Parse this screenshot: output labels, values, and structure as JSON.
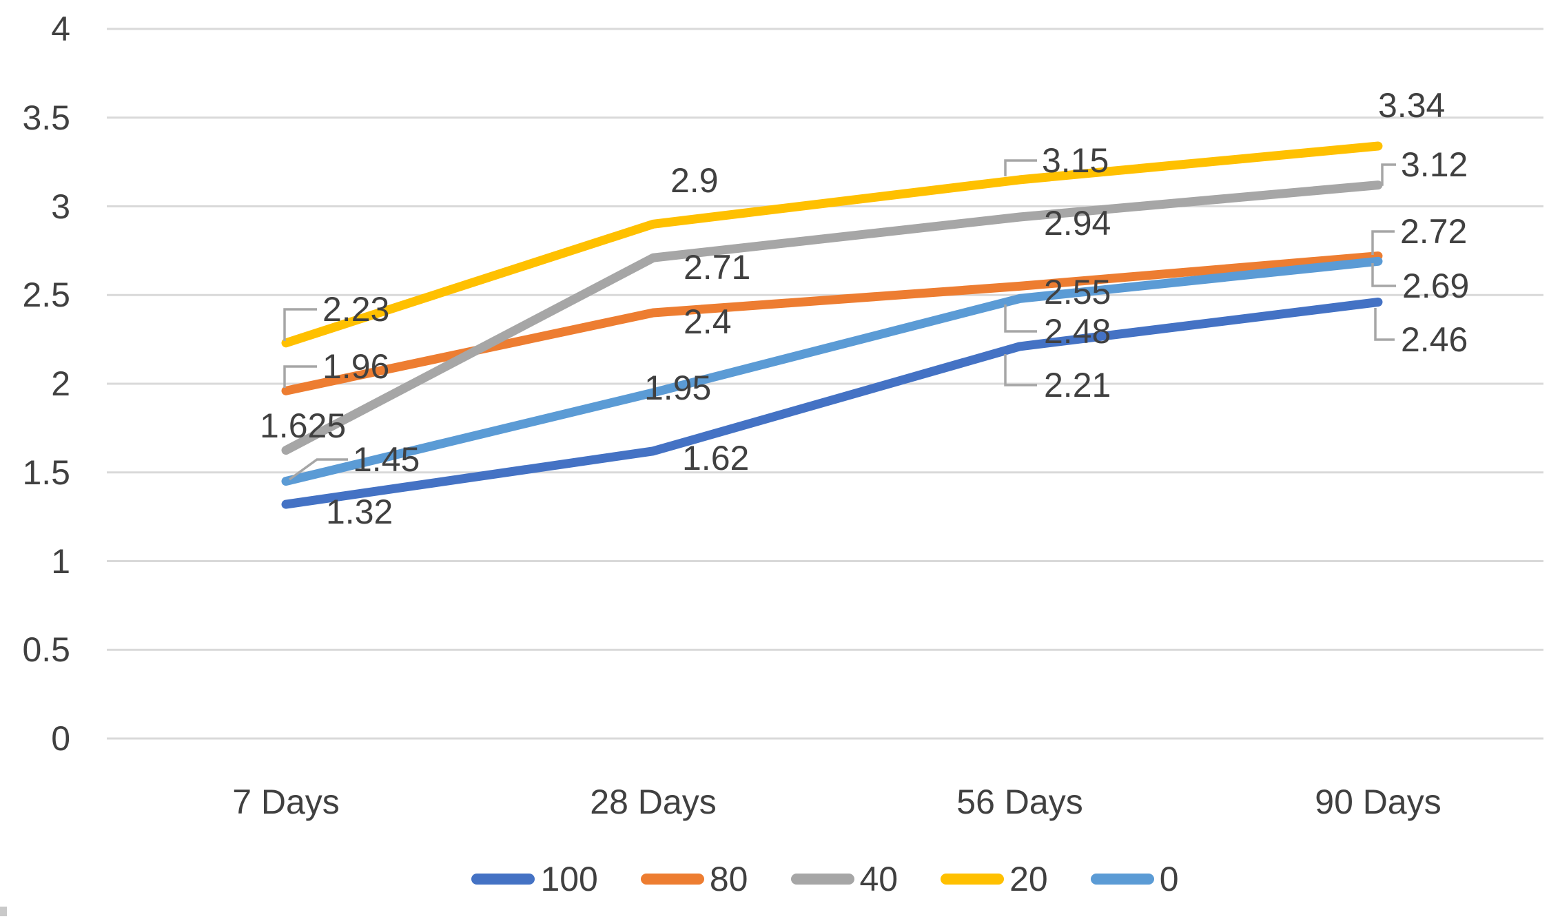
{
  "chart_data": {
    "type": "line",
    "categories": [
      "7 Days",
      "28 Days",
      "56 Days",
      "90 Days"
    ],
    "series": [
      {
        "name": "100",
        "color": "#4472C4",
        "values": [
          1.32,
          1.62,
          2.21,
          2.46
        ],
        "labels": [
          "1.32",
          "1.62",
          "2.21",
          "2.46"
        ]
      },
      {
        "name": "80",
        "color": "#ED7D31",
        "values": [
          1.96,
          2.4,
          2.55,
          2.72
        ],
        "labels": [
          "1.96",
          "2.4",
          "2.55",
          "2.72"
        ]
      },
      {
        "name": "40",
        "color": "#A6A6A6",
        "values": [
          1.625,
          2.71,
          2.94,
          3.12
        ],
        "labels": [
          "1.625",
          "2.71",
          "2.94",
          "3.12"
        ]
      },
      {
        "name": "20",
        "color": "#FFC000",
        "values": [
          2.23,
          2.9,
          3.15,
          3.34
        ],
        "labels": [
          "2.23",
          "2.9",
          "3.15",
          "3.34"
        ]
      },
      {
        "name": "0",
        "color": "#5B9BD5",
        "values": [
          1.45,
          1.95,
          2.48,
          2.69
        ],
        "labels": [
          "1.45",
          "1.95",
          "2.48",
          "2.69"
        ]
      }
    ],
    "y_ticks": [
      "4",
      "3.5",
      "3",
      "2.5",
      "2",
      "1.5",
      "1",
      "0.5",
      "0"
    ],
    "ylim": [
      0,
      4
    ],
    "grid": true,
    "legend_position": "bottom",
    "legend_entries": [
      "100",
      "80",
      "40",
      "20",
      "0"
    ],
    "colors": {
      "gridline": "#D9D9D9",
      "text": "#404040",
      "leader_line": "#A6A6A6",
      "background": "#FFFFFF"
    }
  }
}
